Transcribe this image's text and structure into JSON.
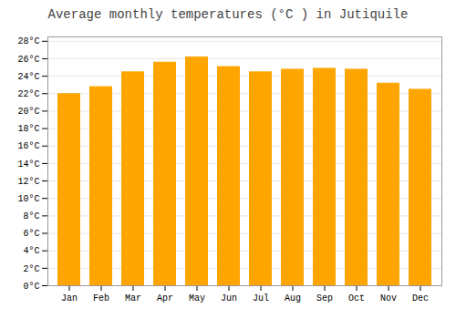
{
  "chart_data": {
    "type": "bar",
    "title": "Average monthly temperatures (°C ) in Jutiquile",
    "categories": [
      "Jan",
      "Feb",
      "Mar",
      "Apr",
      "May",
      "Jun",
      "Jul",
      "Aug",
      "Sep",
      "Oct",
      "Nov",
      "Dec"
    ],
    "values": [
      22.0,
      22.8,
      24.5,
      25.6,
      26.2,
      25.1,
      24.5,
      24.8,
      24.9,
      24.8,
      23.2,
      22.5
    ],
    "color": "#FFA500",
    "ylim": [
      0,
      28.5
    ],
    "yticks": [
      {
        "value": 0,
        "label": "0°C"
      },
      {
        "value": 2,
        "label": "2°C"
      },
      {
        "value": 4,
        "label": "4°C"
      },
      {
        "value": 6,
        "label": "6°C"
      },
      {
        "value": 8,
        "label": "8°C"
      },
      {
        "value": 10,
        "label": "10°C"
      },
      {
        "value": 12,
        "label": "12°C"
      },
      {
        "value": 14,
        "label": "14°C"
      },
      {
        "value": 16,
        "label": "16°C"
      },
      {
        "value": 18,
        "label": "18°C"
      },
      {
        "value": 20,
        "label": "20°C"
      },
      {
        "value": 22,
        "label": "22°C"
      },
      {
        "value": 24,
        "label": "24°C"
      },
      {
        "value": 26,
        "label": "26°C"
      },
      {
        "value": 28,
        "label": "28°C"
      }
    ],
    "grid": true
  }
}
